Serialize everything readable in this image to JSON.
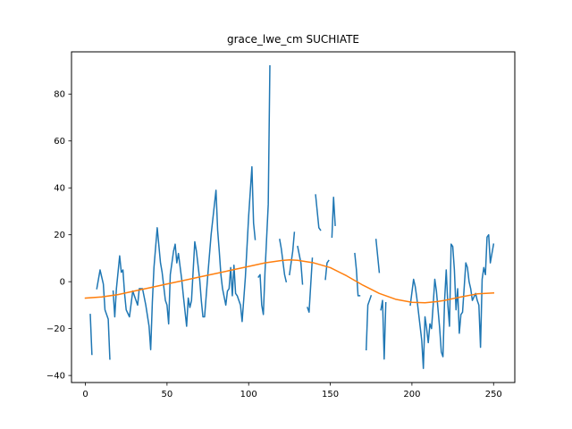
{
  "chart_data": {
    "type": "line",
    "title": "grace_lwe_cm SUCHIATE",
    "xlabel": "",
    "ylabel": "",
    "xlim": [
      -8.5,
      263
    ],
    "ylim": [
      -43,
      98
    ],
    "xticks": [
      0,
      50,
      100,
      150,
      200,
      250
    ],
    "yticks": [
      -40,
      -20,
      0,
      20,
      40,
      60,
      80
    ],
    "grid": false,
    "legend": "none",
    "series": [
      {
        "color": "#1f77b4",
        "points": [
          [
            3,
            -14
          ],
          [
            4,
            -31
          ],
          null,
          [
            7,
            -3
          ],
          [
            9,
            5
          ],
          [
            11,
            -1
          ],
          [
            12,
            -12
          ],
          [
            14,
            -16
          ],
          [
            15,
            -33
          ],
          null,
          [
            17,
            -4
          ],
          [
            18,
            -15
          ],
          [
            19,
            -3
          ],
          [
            21,
            11
          ],
          [
            22,
            4
          ],
          [
            23,
            5
          ],
          [
            24,
            -5
          ],
          [
            25,
            -12
          ],
          [
            27,
            -15
          ],
          [
            29,
            -4
          ],
          [
            30,
            -6
          ],
          [
            32,
            -10
          ],
          [
            33,
            -3
          ],
          [
            35,
            -3
          ],
          [
            37,
            -10
          ],
          [
            39,
            -19
          ],
          [
            40,
            -29
          ],
          [
            41,
            -9
          ],
          [
            42,
            6
          ],
          [
            44,
            23
          ],
          [
            46,
            8
          ],
          [
            47,
            4
          ],
          [
            49,
            -8
          ],
          [
            50,
            -10
          ],
          [
            51,
            -18
          ],
          [
            52,
            3
          ],
          [
            54,
            13
          ],
          [
            55,
            16
          ],
          [
            56,
            8
          ],
          [
            57,
            12
          ],
          [
            59,
            1
          ],
          [
            60,
            -6
          ],
          [
            62,
            -19
          ],
          [
            63,
            -7
          ],
          [
            64,
            -11
          ],
          [
            65,
            -8
          ],
          [
            67,
            17
          ],
          [
            68,
            13
          ],
          [
            70,
            1
          ],
          [
            71,
            -8
          ],
          [
            72,
            -15
          ],
          [
            73,
            -15
          ],
          [
            75,
            3
          ],
          [
            77,
            20
          ],
          [
            80,
            39
          ],
          [
            81,
            22
          ],
          [
            82,
            13
          ],
          [
            83,
            3
          ],
          [
            84,
            -3
          ],
          [
            86,
            -10
          ],
          [
            87,
            -4
          ],
          [
            88,
            -3
          ],
          [
            89,
            6
          ],
          [
            90,
            -6
          ],
          [
            91,
            7
          ],
          [
            92,
            -5
          ],
          [
            93,
            -6
          ],
          [
            95,
            -10
          ],
          [
            96,
            -17
          ],
          [
            98,
            2
          ],
          [
            100,
            28
          ],
          [
            102,
            49
          ],
          [
            103,
            25
          ],
          [
            104,
            18
          ],
          null,
          [
            106,
            2
          ],
          [
            107,
            3
          ],
          [
            108,
            -10
          ],
          [
            109,
            -14
          ],
          [
            110,
            4
          ],
          [
            112,
            33
          ],
          [
            113,
            92
          ],
          null,
          [
            119,
            18
          ],
          [
            120,
            14
          ],
          [
            122,
            3
          ],
          [
            123,
            0
          ],
          null,
          [
            125,
            3
          ],
          [
            127,
            13
          ],
          [
            128,
            21
          ],
          null,
          [
            130,
            15
          ],
          [
            132,
            8
          ],
          [
            133,
            -1
          ],
          null,
          [
            136,
            -11
          ],
          [
            137,
            -13
          ],
          [
            139,
            10
          ],
          null,
          [
            141,
            37
          ],
          [
            143,
            23
          ],
          [
            144,
            22
          ],
          null,
          [
            147,
            1
          ],
          [
            148,
            8
          ],
          [
            149,
            9
          ],
          null,
          [
            151,
            19
          ],
          [
            152,
            36
          ],
          [
            153,
            24
          ],
          null,
          [
            165,
            12
          ],
          [
            166,
            5
          ],
          [
            167,
            -6
          ],
          [
            168,
            -6
          ],
          null,
          [
            172,
            -29
          ],
          [
            173,
            -10
          ],
          [
            175,
            -6
          ],
          null,
          [
            178,
            18
          ],
          [
            180,
            4
          ],
          null,
          [
            181,
            -12
          ],
          [
            182,
            -8
          ],
          [
            183,
            -33
          ],
          [
            184,
            -9
          ],
          null,
          [
            199,
            -10
          ],
          [
            201,
            1
          ],
          [
            202,
            -2
          ],
          [
            203,
            -7
          ],
          [
            205,
            -19
          ],
          [
            206,
            -25
          ],
          [
            207,
            -37
          ],
          [
            208,
            -15
          ],
          [
            209,
            -20
          ],
          [
            210,
            -26
          ],
          [
            211,
            -18
          ],
          [
            212,
            -20
          ],
          [
            213,
            -10
          ],
          [
            214,
            1
          ],
          [
            215,
            -4
          ],
          [
            217,
            -20
          ],
          [
            218,
            -30
          ],
          [
            219,
            -32
          ],
          [
            220,
            -8
          ],
          [
            221,
            5
          ],
          [
            222,
            -10
          ],
          [
            223,
            -19
          ],
          [
            224,
            16
          ],
          [
            225,
            15
          ],
          [
            226,
            5
          ],
          [
            227,
            -12
          ],
          [
            228,
            -3
          ],
          [
            229,
            -22
          ],
          [
            230,
            -14
          ],
          [
            231,
            -13
          ],
          [
            233,
            8
          ],
          [
            234,
            6
          ],
          [
            235,
            0
          ],
          [
            236,
            -3
          ],
          [
            237,
            -8
          ],
          [
            239,
            -5
          ],
          [
            240,
            -8
          ],
          [
            241,
            -10
          ],
          [
            242,
            -28
          ],
          [
            243,
            1
          ],
          [
            244,
            6
          ],
          [
            245,
            3
          ],
          [
            246,
            19
          ],
          [
            247,
            20
          ],
          [
            248,
            8
          ],
          [
            249,
            12
          ],
          [
            250,
            16
          ]
        ]
      },
      {
        "color": "#ff7f0e",
        "points": [
          [
            0,
            -7
          ],
          [
            10,
            -6.5
          ],
          [
            20,
            -5.5
          ],
          [
            30,
            -4
          ],
          [
            40,
            -2.5
          ],
          [
            50,
            -1
          ],
          [
            60,
            0.5
          ],
          [
            70,
            2
          ],
          [
            80,
            3.5
          ],
          [
            90,
            5
          ],
          [
            100,
            6.5
          ],
          [
            110,
            8
          ],
          [
            120,
            9
          ],
          [
            125,
            9.3
          ],
          [
            130,
            9.1
          ],
          [
            140,
            8
          ],
          [
            150,
            6
          ],
          [
            160,
            2.5
          ],
          [
            170,
            -1.5
          ],
          [
            180,
            -5
          ],
          [
            190,
            -7.5
          ],
          [
            200,
            -8.8
          ],
          [
            208,
            -9
          ],
          [
            215,
            -8.5
          ],
          [
            220,
            -8
          ],
          [
            230,
            -6.5
          ],
          [
            240,
            -5.2
          ],
          [
            250,
            -4.8
          ]
        ]
      }
    ]
  }
}
